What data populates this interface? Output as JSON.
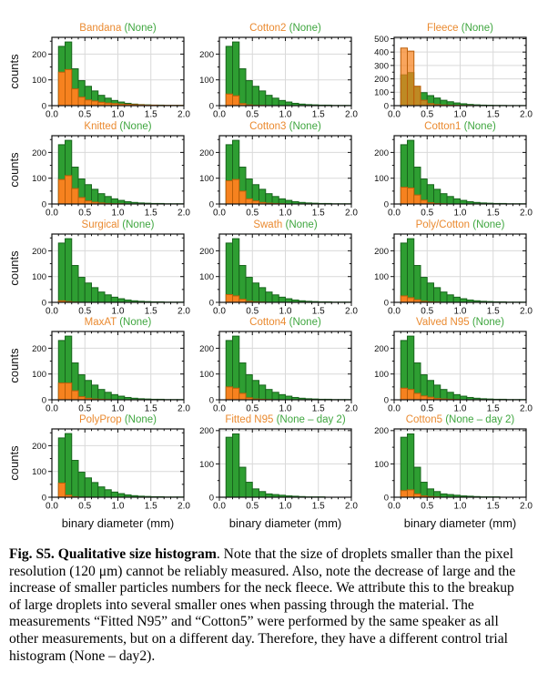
{
  "figure": {
    "ylabel": "counts",
    "xlabel": "binary diameter (mm)",
    "xlim": [
      0,
      2
    ],
    "xticks": [
      0,
      0.5,
      1.0,
      1.5,
      2.0
    ],
    "xtick_labels": [
      "0.0",
      "0.5",
      "1.0",
      "1.5",
      "2.0"
    ],
    "bins": {
      "start": 0.1,
      "width": 0.1,
      "count": 19
    },
    "colors": {
      "green_fill": "#2E9E32",
      "green_edge": "#18641C",
      "orange_fill": "#F6821F",
      "orange_edge": "#BB5E09",
      "title_orange": "#EA8A30",
      "title_green": "#3FA63F",
      "grid": "#D9D9D9",
      "axis": "#111111"
    }
  },
  "chart_data": [
    {
      "type": "histogram",
      "id": "bandana",
      "title_material": "Bandana",
      "title_control": "(None)",
      "ymax": 265,
      "yticks": [
        0,
        100,
        200
      ],
      "control_counts": [
        230,
        247,
        143,
        97,
        75,
        57,
        40,
        29,
        20,
        14,
        9,
        6,
        4,
        3,
        2,
        2,
        1,
        1,
        1
      ],
      "material_counts": [
        130,
        140,
        65,
        33,
        22,
        18,
        13,
        10,
        8,
        6,
        5,
        4,
        3,
        2,
        2,
        1,
        1,
        1,
        1
      ],
      "material_opacity": 1
    },
    {
      "type": "histogram",
      "id": "cotton2",
      "title_material": "Cotton2",
      "title_control": "(None)",
      "ymax": 265,
      "yticks": [
        0,
        100,
        200
      ],
      "control_counts": [
        230,
        247,
        143,
        97,
        75,
        57,
        40,
        29,
        20,
        14,
        9,
        6,
        4,
        3,
        2,
        2,
        1,
        1,
        1
      ],
      "material_counts": [
        45,
        38,
        8,
        3,
        1,
        1,
        0,
        0,
        0,
        0,
        0,
        0,
        0,
        0,
        0,
        0,
        0,
        0,
        0
      ],
      "material_opacity": 1
    },
    {
      "type": "histogram",
      "id": "fleece",
      "title_material": "Fleece",
      "title_control": "(None)",
      "ymax": 510,
      "yticks": [
        0,
        100,
        200,
        300,
        400,
        500
      ],
      "control_counts": [
        230,
        247,
        143,
        97,
        75,
        57,
        40,
        29,
        20,
        14,
        9,
        6,
        4,
        3,
        2,
        2,
        1,
        1,
        1
      ],
      "material_counts": [
        430,
        407,
        145,
        40,
        15,
        8,
        5,
        3,
        2,
        1,
        1,
        0,
        0,
        0,
        0,
        0,
        0,
        0,
        0
      ],
      "material_opacity": 0.72
    },
    {
      "type": "histogram",
      "id": "knitted",
      "title_material": "Knitted",
      "title_control": "(None)",
      "ymax": 265,
      "yticks": [
        0,
        100,
        200
      ],
      "control_counts": [
        230,
        247,
        143,
        97,
        75,
        57,
        40,
        29,
        20,
        14,
        9,
        6,
        4,
        3,
        2,
        2,
        1,
        1,
        1
      ],
      "material_counts": [
        95,
        110,
        60,
        25,
        12,
        7,
        4,
        2,
        1,
        1,
        0,
        0,
        0,
        0,
        0,
        0,
        0,
        0,
        0
      ],
      "material_opacity": 1
    },
    {
      "type": "histogram",
      "id": "cotton3",
      "title_material": "Cotton3",
      "title_control": "(None)",
      "ymax": 265,
      "yticks": [
        0,
        100,
        200
      ],
      "control_counts": [
        230,
        247,
        143,
        97,
        75,
        57,
        40,
        29,
        20,
        14,
        9,
        6,
        4,
        3,
        2,
        2,
        1,
        1,
        1
      ],
      "material_counts": [
        90,
        95,
        50,
        20,
        12,
        6,
        3,
        2,
        1,
        0,
        0,
        0,
        0,
        0,
        0,
        0,
        0,
        0,
        0
      ],
      "material_opacity": 1
    },
    {
      "type": "histogram",
      "id": "cotton1",
      "title_material": "Cotton1",
      "title_control": "(None)",
      "ymax": 265,
      "yticks": [
        0,
        100,
        200
      ],
      "control_counts": [
        230,
        247,
        143,
        97,
        75,
        57,
        40,
        29,
        20,
        14,
        9,
        6,
        4,
        3,
        2,
        2,
        1,
        1,
        1
      ],
      "material_counts": [
        65,
        62,
        35,
        15,
        5,
        2,
        1,
        0,
        0,
        0,
        0,
        0,
        0,
        0,
        0,
        0,
        0,
        0,
        0
      ],
      "material_opacity": 1
    },
    {
      "type": "histogram",
      "id": "surgical",
      "title_material": "Surgical",
      "title_control": "(None)",
      "ymax": 265,
      "yticks": [
        0,
        100,
        200
      ],
      "control_counts": [
        230,
        247,
        143,
        97,
        75,
        57,
        40,
        29,
        20,
        14,
        9,
        6,
        4,
        3,
        2,
        2,
        1,
        1,
        1
      ],
      "material_counts": [
        6,
        3,
        1,
        0,
        0,
        0,
        0,
        0,
        0,
        0,
        0,
        0,
        0,
        0,
        0,
        0,
        0,
        0,
        0
      ],
      "material_opacity": 1
    },
    {
      "type": "histogram",
      "id": "swath",
      "title_material": "Swath",
      "title_control": "(None)",
      "ymax": 265,
      "yticks": [
        0,
        100,
        200
      ],
      "control_counts": [
        230,
        247,
        143,
        97,
        75,
        57,
        40,
        29,
        20,
        14,
        9,
        6,
        4,
        3,
        2,
        2,
        1,
        1,
        1
      ],
      "material_counts": [
        30,
        25,
        12,
        4,
        2,
        1,
        0,
        0,
        0,
        0,
        0,
        0,
        0,
        0,
        0,
        0,
        0,
        0,
        0
      ],
      "material_opacity": 1
    },
    {
      "type": "histogram",
      "id": "poly-cotton",
      "title_material": "Poly/Cotton",
      "title_control": "(None)",
      "ymax": 265,
      "yticks": [
        0,
        100,
        200
      ],
      "control_counts": [
        230,
        247,
        143,
        97,
        75,
        57,
        40,
        29,
        20,
        14,
        9,
        6,
        4,
        3,
        2,
        2,
        1,
        1,
        1
      ],
      "material_counts": [
        25,
        18,
        10,
        4,
        2,
        1,
        0,
        0,
        0,
        0,
        0,
        0,
        0,
        0,
        0,
        0,
        0,
        0,
        0
      ],
      "material_opacity": 1
    },
    {
      "type": "histogram",
      "id": "maxat",
      "title_material": "MaxAT",
      "title_control": "(None)",
      "ymax": 265,
      "yticks": [
        0,
        100,
        200
      ],
      "control_counts": [
        230,
        247,
        143,
        97,
        75,
        57,
        40,
        29,
        20,
        14,
        9,
        6,
        4,
        3,
        2,
        2,
        1,
        1,
        1
      ],
      "material_counts": [
        65,
        65,
        35,
        12,
        6,
        3,
        2,
        1,
        0,
        0,
        0,
        0,
        0,
        0,
        0,
        0,
        0,
        0,
        0
      ],
      "material_opacity": 1
    },
    {
      "type": "histogram",
      "id": "cotton4",
      "title_material": "Cotton4",
      "title_control": "(None)",
      "ymax": 265,
      "yticks": [
        0,
        100,
        200
      ],
      "control_counts": [
        230,
        247,
        143,
        97,
        75,
        57,
        40,
        29,
        20,
        14,
        9,
        6,
        4,
        3,
        2,
        2,
        1,
        1,
        1
      ],
      "material_counts": [
        50,
        45,
        25,
        8,
        3,
        2,
        1,
        0,
        0,
        0,
        0,
        0,
        0,
        0,
        0,
        0,
        0,
        0,
        0
      ],
      "material_opacity": 1
    },
    {
      "type": "histogram",
      "id": "valved-n95",
      "title_material": "Valved N95",
      "title_control": "(None)",
      "ymax": 265,
      "yticks": [
        0,
        100,
        200
      ],
      "control_counts": [
        230,
        247,
        143,
        97,
        75,
        57,
        40,
        29,
        20,
        14,
        9,
        6,
        4,
        3,
        2,
        2,
        1,
        1,
        1
      ],
      "material_counts": [
        45,
        40,
        25,
        15,
        10,
        5,
        3,
        2,
        1,
        0,
        0,
        0,
        0,
        0,
        0,
        0,
        0,
        0,
        0
      ],
      "material_opacity": 1
    },
    {
      "type": "histogram",
      "id": "polyprop",
      "title_material": "PolyProp",
      "title_control": "(None)",
      "ymax": 265,
      "yticks": [
        0,
        100,
        200
      ],
      "control_counts": [
        230,
        247,
        143,
        97,
        75,
        57,
        40,
        29,
        20,
        14,
        9,
        6,
        4,
        3,
        2,
        2,
        1,
        1,
        1
      ],
      "material_counts": [
        55,
        8,
        2,
        0,
        0,
        0,
        0,
        0,
        0,
        0,
        0,
        0,
        0,
        0,
        0,
        0,
        0,
        0,
        0
      ],
      "material_opacity": 1
    },
    {
      "type": "histogram",
      "id": "fitted-n95",
      "title_material": "Fitted N95",
      "title_control": "(None – day 2)",
      "ymax": 205,
      "yticks": [
        0,
        100,
        200
      ],
      "control_counts": [
        180,
        190,
        90,
        45,
        25,
        17,
        10,
        8,
        6,
        4,
        3,
        2,
        1,
        1,
        1,
        0,
        0,
        0,
        0
      ],
      "material_counts": [
        0,
        0,
        0,
        0,
        0,
        0,
        0,
        0,
        0,
        0,
        0,
        0,
        0,
        0,
        0,
        0,
        0,
        0,
        0
      ],
      "material_opacity": 1
    },
    {
      "type": "histogram",
      "id": "cotton5",
      "title_material": "Cotton5",
      "title_control": "(None – day 2)",
      "ymax": 205,
      "yticks": [
        0,
        100,
        200
      ],
      "control_counts": [
        180,
        190,
        90,
        45,
        25,
        17,
        10,
        8,
        6,
        4,
        3,
        2,
        1,
        1,
        1,
        0,
        0,
        0,
        0
      ],
      "material_counts": [
        20,
        22,
        10,
        4,
        2,
        1,
        0,
        0,
        0,
        0,
        0,
        0,
        0,
        0,
        0,
        0,
        0,
        0,
        0
      ],
      "material_opacity": 1
    }
  ],
  "caption": {
    "bold": "Fig. S5. Qualitative size histogram",
    "rest": ". Note that the size of droplets smaller than the pixel\nresolution (120 μm) cannot be reliably measured. Also, note the decrease of large and the\nincrease of smaller particles numbers for the neck fleece. We attribute this to the breakup\nof large droplets into several smaller ones when passing through the material. The\nmeasurements “Fitted N95” and “Cotton5” were performed by the same speaker as all\nother measurements, but on a different day. Therefore, they have a different control trial\nhistogram (None – day2)."
  }
}
